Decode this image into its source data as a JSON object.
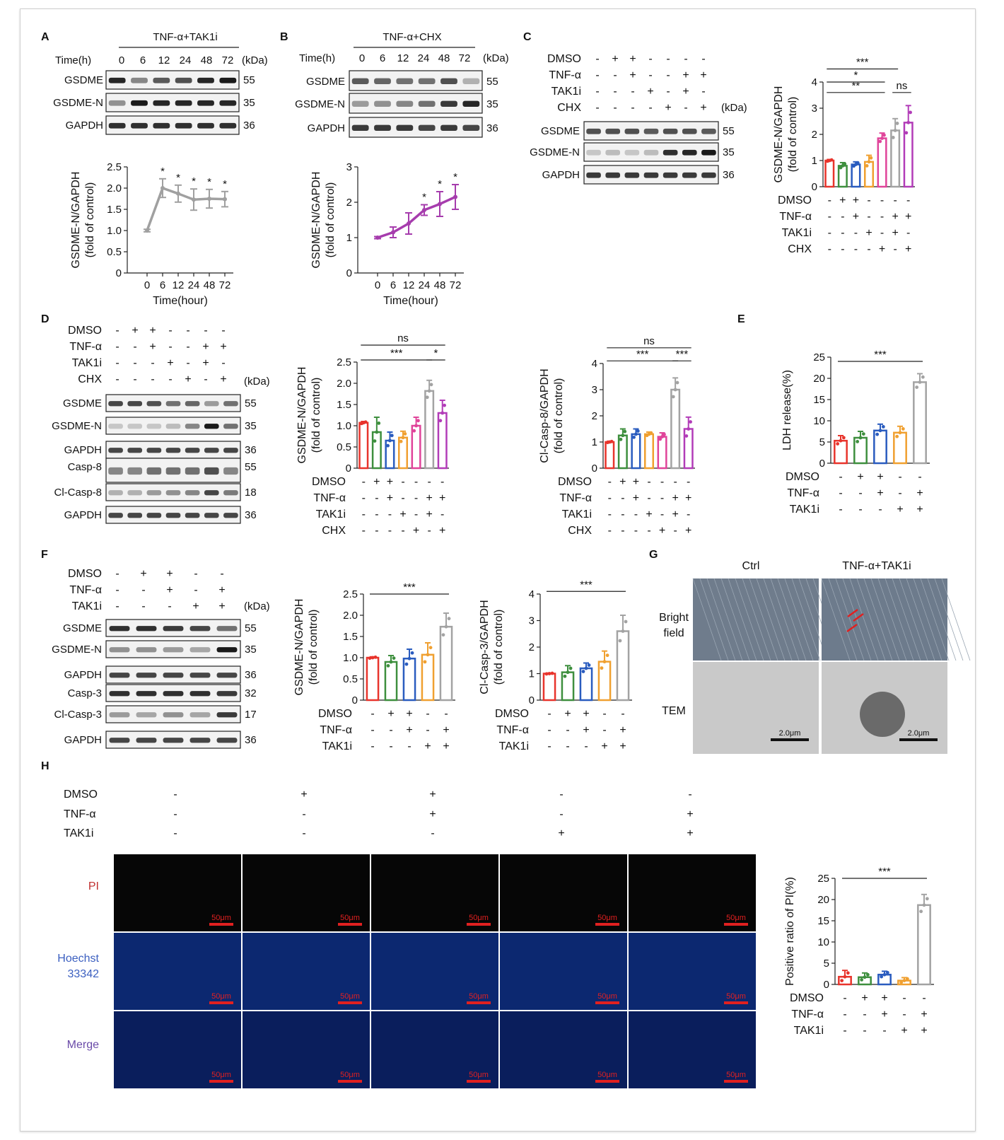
{
  "panels": {
    "A": "A",
    "B": "B",
    "C": "C",
    "D": "D",
    "E": "E",
    "F": "F",
    "G": "G",
    "H": "H"
  },
  "common": {
    "kda": "(kDa)",
    "time_h": "Time(h)",
    "plus": "+",
    "minus": "-",
    "star": "*",
    "stars3": "***",
    "stars2": "**",
    "ns": "ns",
    "row_dmso": "DMSO",
    "row_tnf": "TNF-α",
    "row_tak1i": "TAK1i",
    "row_chx": "CHX",
    "band_gsdme": "GSDME",
    "band_gsdmen": "GSDME-N",
    "band_gapdh": "GAPDH",
    "band_casp8": "Casp-8",
    "band_clcasp8": "Cl-Casp-8",
    "band_casp3": "Casp-3",
    "band_clcasp3": "Cl-Casp-3",
    "y_gsdmen": "GSDME-N/GAPDH",
    "y_fold": "(fold of control)",
    "y_clcasp8": "Cl-Casp-8/GAPDH",
    "y_clcasp3": "Cl-Casp-3/GAPDH",
    "y_ldh": "LDH release(%)",
    "y_pi": "Positive ratio of PI(%)",
    "x_time": "Time(hour)"
  },
  "panel_a": {
    "treatment": "TNF-α+TAK1i",
    "times": [
      "0",
      "6",
      "12",
      "24",
      "48",
      "72"
    ],
    "mw": [
      "55",
      "35",
      "36"
    ]
  },
  "panel_b": {
    "treatment": "TNF-α+CHX",
    "times": [
      "0",
      "6",
      "12",
      "24",
      "48",
      "72"
    ],
    "mw": [
      "55",
      "35",
      "36"
    ]
  },
  "panel_c": {
    "mw": [
      "55",
      "35",
      "36"
    ]
  },
  "panel_d": {
    "mw": [
      "55",
      "35",
      "36",
      "55",
      "18",
      "36"
    ]
  },
  "panel_f": {
    "mw": [
      "55",
      "35",
      "36",
      "32",
      "17",
      "36"
    ]
  },
  "panel_g": {
    "col_ctrl": "Ctrl",
    "col_treat": "TNF-α+TAK1i",
    "row_bf1": "Bright",
    "row_bf2": "field",
    "row_tem": "TEM",
    "scale_tem": "2.0μm"
  },
  "panel_h": {
    "row_pi": "PI",
    "row_hoechst1": "Hoechst",
    "row_hoechst2": "33342",
    "row_merge": "Merge",
    "scale": "50μm"
  },
  "chart_data": [
    {
      "id": "A",
      "type": "line",
      "x": [
        "0",
        "6",
        "12",
        "24",
        "48",
        "72"
      ],
      "values": [
        1.0,
        2.0,
        1.87,
        1.73,
        1.75,
        1.74
      ],
      "errors": [
        0.03,
        0.22,
        0.2,
        0.25,
        0.22,
        0.18
      ],
      "color": "#a0a0a0",
      "ylim": [
        0,
        2.5
      ],
      "yticks": [
        "0",
        "0.5",
        "1.0",
        "1.5",
        "2.0",
        "2.5"
      ],
      "xlabel": "Time(hour)",
      "ylabel": "GSDME-N/GAPDH",
      "sig": [
        "",
        "*",
        "*",
        "*",
        "*",
        "*"
      ]
    },
    {
      "id": "B",
      "type": "line",
      "x": [
        "0",
        "6",
        "12",
        "24",
        "48",
        "72"
      ],
      "values": [
        1.0,
        1.15,
        1.4,
        1.78,
        1.95,
        2.15
      ],
      "errors": [
        0.03,
        0.15,
        0.3,
        0.15,
        0.35,
        0.35
      ],
      "color": "#a63cad",
      "ylim": [
        0,
        3
      ],
      "yticks": [
        "0",
        "1",
        "2",
        "3"
      ],
      "xlabel": "Time(hour)",
      "ylabel": "GSDME-N/GAPDH",
      "sig": [
        "",
        "",
        "",
        "*",
        "*",
        "*"
      ]
    },
    {
      "id": "C",
      "type": "bar",
      "values": [
        1.0,
        0.8,
        0.85,
        0.95,
        1.85,
        2.15,
        2.45
      ],
      "errors": [
        0.04,
        0.12,
        0.1,
        0.25,
        0.2,
        0.45,
        0.65
      ],
      "ylim": [
        0,
        4
      ],
      "yticks": [
        "0",
        "1",
        "2",
        "3",
        "4"
      ],
      "ylabel": "GSDME-N/GAPDH",
      "rows": {
        "DMSO": [
          "-",
          "+",
          "+",
          "-",
          "-",
          "-",
          "-"
        ],
        "TNF-α": [
          "-",
          "-",
          "+",
          "-",
          "-",
          "+",
          "+"
        ],
        "TAK1i": [
          "-",
          "-",
          "-",
          "+",
          "-",
          "+",
          "-"
        ],
        "CHX": [
          "-",
          "-",
          "-",
          "-",
          "+",
          "-",
          "+"
        ]
      }
    },
    {
      "id": "D1",
      "type": "bar",
      "values": [
        1.07,
        0.85,
        0.65,
        0.72,
        1.0,
        1.82,
        1.3
      ],
      "errors": [
        0.03,
        0.35,
        0.2,
        0.15,
        0.2,
        0.25,
        0.3
      ],
      "ylim": [
        0,
        2.5
      ],
      "yticks": [
        "0",
        "0.5",
        "1.0",
        "1.5",
        "2.0",
        "2.5"
      ],
      "ylabel": "GSDME-N/GAPDH",
      "rows": {
        "DMSO": [
          "-",
          "+",
          "+",
          "-",
          "-",
          "-",
          "-"
        ],
        "TNF-α": [
          "-",
          "-",
          "+",
          "-",
          "-",
          "+",
          "+"
        ],
        "TAK1i": [
          "-",
          "-",
          "-",
          "+",
          "-",
          "+",
          "-"
        ],
        "CHX": [
          "-",
          "-",
          "-",
          "-",
          "+",
          "-",
          "+"
        ]
      }
    },
    {
      "id": "D2",
      "type": "bar",
      "values": [
        1.0,
        1.25,
        1.3,
        1.3,
        1.2,
        3.0,
        1.5
      ],
      "errors": [
        0.03,
        0.25,
        0.2,
        0.08,
        0.15,
        0.45,
        0.45
      ],
      "ylim": [
        0,
        4
      ],
      "yticks": [
        "0",
        "1",
        "2",
        "3",
        "4"
      ],
      "ylabel": "Cl-Casp-8/GAPDH",
      "rows": {
        "DMSO": [
          "-",
          "+",
          "+",
          "-",
          "-",
          "-",
          "-"
        ],
        "TNF-α": [
          "-",
          "-",
          "+",
          "-",
          "-",
          "+",
          "+"
        ],
        "TAK1i": [
          "-",
          "-",
          "-",
          "+",
          "-",
          "+",
          "-"
        ],
        "CHX": [
          "-",
          "-",
          "-",
          "-",
          "+",
          "-",
          "+"
        ]
      }
    },
    {
      "id": "E",
      "type": "bar",
      "values": [
        5.3,
        6.0,
        7.7,
        7.2,
        19.1
      ],
      "errors": [
        1.2,
        1.5,
        1.5,
        1.5,
        2.0
      ],
      "ylim": [
        0,
        25
      ],
      "yticks": [
        "0",
        "5",
        "10",
        "15",
        "20",
        "25"
      ],
      "ylabel": "LDH release(%)",
      "rows": {
        "DMSO": [
          "-",
          "+",
          "+",
          "-",
          "-"
        ],
        "TNF-α": [
          "-",
          "-",
          "+",
          "-",
          "+"
        ],
        "TAK1i": [
          "-",
          "-",
          "-",
          "+",
          "+"
        ]
      }
    },
    {
      "id": "F1",
      "type": "bar",
      "values": [
        1.0,
        0.9,
        0.98,
        1.07,
        1.73
      ],
      "errors": [
        0.02,
        0.15,
        0.22,
        0.28,
        0.32
      ],
      "ylim": [
        0,
        2.5
      ],
      "yticks": [
        "0",
        "0.5",
        "1.0",
        "1.5",
        "2.0",
        "2.5"
      ],
      "ylabel": "GSDME-N/GAPDH",
      "rows": {
        "DMSO": [
          "-",
          "+",
          "+",
          "-",
          "-"
        ],
        "TNF-α": [
          "-",
          "-",
          "+",
          "-",
          "+"
        ],
        "TAK1i": [
          "-",
          "-",
          "-",
          "+",
          "+"
        ]
      }
    },
    {
      "id": "F2",
      "type": "bar",
      "values": [
        1.0,
        1.05,
        1.2,
        1.45,
        2.6
      ],
      "errors": [
        0.02,
        0.25,
        0.2,
        0.4,
        0.6
      ],
      "ylim": [
        0,
        4
      ],
      "yticks": [
        "0",
        "1",
        "2",
        "3",
        "4"
      ],
      "ylabel": "Cl-Casp-3/GAPDH",
      "rows": {
        "DMSO": [
          "-",
          "+",
          "+",
          "-",
          "-"
        ],
        "TNF-α": [
          "-",
          "-",
          "+",
          "-",
          "+"
        ],
        "TAK1i": [
          "-",
          "-",
          "-",
          "+",
          "+"
        ]
      }
    },
    {
      "id": "H",
      "type": "bar",
      "values": [
        1.8,
        1.7,
        2.3,
        0.9,
        18.7
      ],
      "errors": [
        1.5,
        1.0,
        0.8,
        0.7,
        2.5
      ],
      "ylim": [
        0,
        25
      ],
      "yticks": [
        "0",
        "5",
        "10",
        "15",
        "20",
        "25"
      ],
      "ylabel": "Positive ratio of PI(%)",
      "rows": {
        "DMSO": [
          "-",
          "+",
          "+",
          "-",
          "-"
        ],
        "TNF-α": [
          "-",
          "-",
          "+",
          "-",
          "+"
        ],
        "TAK1i": [
          "-",
          "-",
          "-",
          "+",
          "+"
        ]
      }
    }
  ],
  "colors": {
    "bars7": [
      "#e8342c",
      "#3e8f3e",
      "#2a5cbf",
      "#f0a030",
      "#e0449a",
      "#a3a3a3",
      "#b23cb8"
    ],
    "bars5": [
      "#e8342c",
      "#3e8f3e",
      "#2a5cbf",
      "#f0a030",
      "#a3a3a3"
    ]
  }
}
